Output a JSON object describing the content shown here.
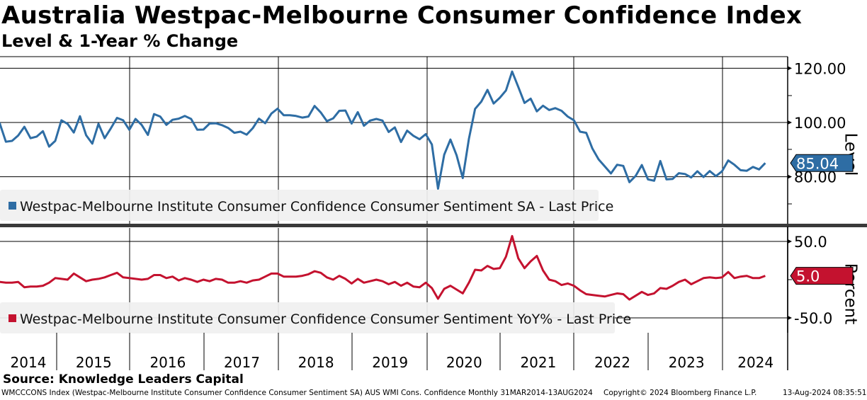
{
  "title": "Australia Westpac-Melbourne Consumer Confidence Index",
  "subtitle": "Level & 1-Year % Change",
  "source": "Source: Knowledge Leaders Capital",
  "footer": {
    "ticker": "WMCCCONS Index (Westpac-Melbourne Institute Consumer Confidence Consumer Sentiment SA) AUS WMI Cons. Confidence  Monthly 31MAR2014-13AUG2024",
    "copyright": "Copyright© 2024 Bloomberg Finance L.P.",
    "timestamp": "13-Aug-2024 08:35:51"
  },
  "colors": {
    "level": "#2e6da4",
    "yoy": "#c4122f"
  },
  "chart_data": [
    {
      "type": "line",
      "title": "Level",
      "ylabel": "Level",
      "ylim": [
        64,
        124
      ],
      "yticks": [
        "120.00",
        "100.00",
        "80.00"
      ],
      "ytick_values": [
        120,
        100,
        80
      ],
      "start": "2014-03",
      "frequency": "monthly",
      "legend": "Westpac-Melbourne Institute Consumer Confidence Consumer Sentiment SA - Last Price",
      "legend_placement": "bottom-left",
      "last_value_label": "85.04",
      "values": [
        99.5,
        99.7,
        92.9,
        93.2,
        95.2,
        98.4,
        94.2,
        94.8,
        96.8,
        91.1,
        93.2,
        100.8,
        99.5,
        96.3,
        102.3,
        95.3,
        92.2,
        99.5,
        94.2,
        97.8,
        101.7,
        100.8,
        97.3,
        101.3,
        99.1,
        95.4,
        103.1,
        102.2,
        99.1,
        101.0,
        101.4,
        102.4,
        101.3,
        97.3,
        97.4,
        99.6,
        99.7,
        99.0,
        98.0,
        96.2,
        96.6,
        95.5,
        97.9,
        101.4,
        99.7,
        103.3,
        105.1,
        102.7,
        102.7,
        102.4,
        101.8,
        102.2,
        106.1,
        103.7,
        100.5,
        101.5,
        104.3,
        104.4,
        99.6,
        103.8,
        98.8,
        100.7,
        101.3,
        100.7,
        96.5,
        98.2,
        92.8,
        97.0,
        95.1,
        93.8,
        95.7,
        91.9,
        75.6,
        88.1,
        93.7,
        87.9,
        79.5,
        94.0,
        105.0,
        107.7,
        112.0,
        107.0,
        109.1,
        111.8,
        118.8,
        113.1,
        107.2,
        108.8,
        104.1,
        106.2,
        104.6,
        105.3,
        104.3,
        102.2,
        100.8,
        96.6,
        96.2,
        90.4,
        86.4,
        83.8,
        81.2,
        84.4,
        84.0,
        78.0,
        80.3,
        84.3,
        79.0,
        78.5,
        85.8,
        79.0,
        79.2,
        81.3,
        81.0,
        79.7,
        82.0,
        79.9,
        82.1,
        80.2,
        82.0,
        86.0,
        84.4,
        82.4,
        82.2,
        83.6,
        82.7,
        85.04
      ]
    },
    {
      "type": "line",
      "title": "1-Year % Change",
      "ylabel": "Percent",
      "ylim": [
        -70,
        70
      ],
      "yticks": [
        "50.0",
        "-50.0"
      ],
      "ytick_values": [
        50,
        -50
      ],
      "start": "2014-03",
      "frequency": "monthly",
      "legend": "Westpac-Melbourne Institute Consumer Confidence Consumer Sentiment YoY% - Last Price",
      "legend_placement": "bottom-left",
      "last_value_label": "5.0",
      "values": [
        -5,
        -3,
        -4,
        -4,
        -3,
        -10,
        -9,
        -9,
        -8,
        -4,
        2,
        1,
        0,
        8,
        3,
        -2,
        0,
        1,
        3,
        6,
        9,
        3,
        2,
        1,
        0,
        1,
        6,
        6,
        2,
        4,
        -1,
        2,
        0,
        -3,
        0,
        -2,
        1,
        0,
        -4,
        -4,
        -2,
        -4,
        -1,
        0,
        4,
        8,
        8,
        4,
        4,
        4,
        5,
        7,
        11,
        9,
        3,
        0,
        5,
        1,
        -5,
        1,
        -4,
        -2,
        0,
        -2,
        -6,
        -3,
        -8,
        -4,
        -9,
        -10,
        -4,
        -11,
        -25,
        -12,
        -8,
        -13,
        -18,
        -4,
        13,
        12,
        18,
        14,
        15,
        30,
        57,
        28,
        15,
        24,
        31,
        12,
        0,
        -2,
        -7,
        -5,
        -8,
        -14,
        -19,
        -20,
        -21,
        -22,
        -20,
        -18,
        -19,
        -26,
        -21,
        -16,
        -20,
        -18,
        -11,
        -12,
        -8,
        -3,
        0,
        -6,
        -2,
        2,
        3,
        2,
        3,
        10,
        2,
        4,
        5,
        2,
        2,
        5
      ]
    }
  ],
  "x_axis": {
    "labels": [
      "2014",
      "2015",
      "2016",
      "2017",
      "2018",
      "2019",
      "2020",
      "2021",
      "2022",
      "2023",
      "2024"
    ]
  }
}
